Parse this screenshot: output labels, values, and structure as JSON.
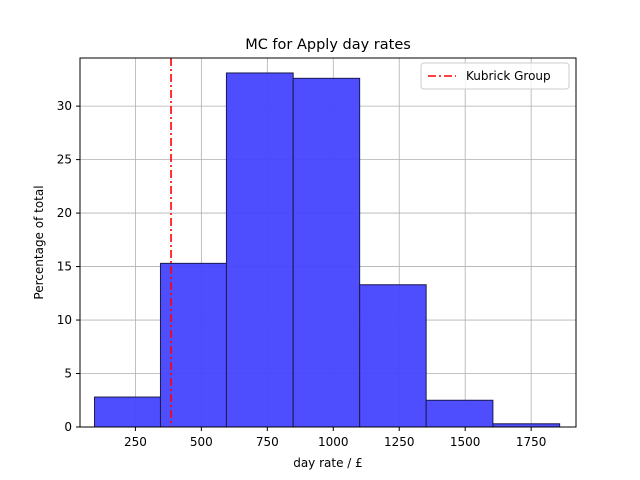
{
  "chart_data": {
    "type": "bar",
    "title": "MC for Apply day rates",
    "xlabel": "day rate / £",
    "ylabel": "Percentage of total",
    "xlim": [
      40,
      1920
    ],
    "ylim": [
      0,
      34.5
    ],
    "xticks": [
      250,
      500,
      750,
      1000,
      1250,
      1500,
      1750
    ],
    "yticks": [
      0,
      5,
      10,
      15,
      20,
      25,
      30
    ],
    "grid": true,
    "bins": [
      {
        "x0": 95,
        "x1": 345,
        "value": 2.8
      },
      {
        "x0": 345,
        "x1": 595,
        "value": 15.3
      },
      {
        "x0": 595,
        "x1": 848,
        "value": 33.1
      },
      {
        "x0": 848,
        "x1": 1100,
        "value": 32.6
      },
      {
        "x0": 1100,
        "x1": 1352,
        "value": 13.3
      },
      {
        "x0": 1352,
        "x1": 1605,
        "value": 2.5
      },
      {
        "x0": 1605,
        "x1": 1858,
        "value": 0.3
      }
    ],
    "bar_color": "#4444ff",
    "bar_edge_color": "#1a1a4d",
    "reference_line": {
      "name": "Kubrick Group",
      "x": 385,
      "color": "#ff0000",
      "style": "dash-dot"
    },
    "legend_position": "top-right"
  }
}
